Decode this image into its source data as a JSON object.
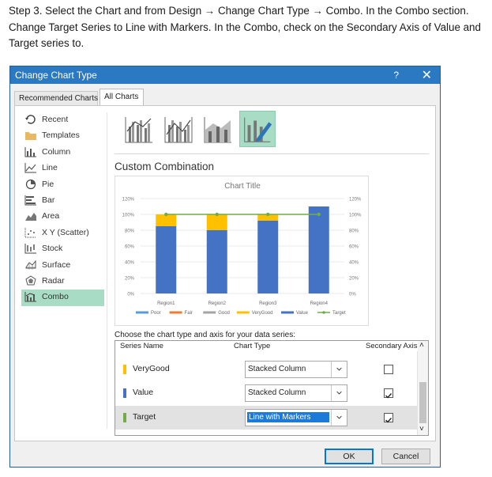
{
  "instruction": "Step 3. Select the Chart and from Design → Change Chart Type → Combo. In the Combo section. Change Target Series to Line with Markers. In the Combo, check on the Secondary Axis of Value and Target series to.",
  "dialog": {
    "title": "Change Chart Type",
    "help": "?",
    "close": "✕",
    "tabs": [
      "Recommended Charts",
      "All Charts"
    ],
    "chart_types": [
      {
        "label": "Recent",
        "icon": "recent-icon"
      },
      {
        "label": "Templates",
        "icon": "templates-folder-icon"
      },
      {
        "label": "Column",
        "icon": "column-chart-icon"
      },
      {
        "label": "Line",
        "icon": "line-chart-icon"
      },
      {
        "label": "Pie",
        "icon": "pie-chart-icon"
      },
      {
        "label": "Bar",
        "icon": "bar-chart-icon"
      },
      {
        "label": "Area",
        "icon": "area-chart-icon"
      },
      {
        "label": "X Y (Scatter)",
        "icon": "scatter-chart-icon"
      },
      {
        "label": "Stock",
        "icon": "stock-chart-icon"
      },
      {
        "label": "Surface",
        "icon": "surface-chart-icon"
      },
      {
        "label": "Radar",
        "icon": "radar-chart-icon"
      },
      {
        "label": "Combo",
        "icon": "combo-chart-icon"
      }
    ],
    "selected_type": "Combo",
    "custom_title": "Custom Combination",
    "choose_label": "Choose the chart type and axis for your data series:",
    "table_headers": {
      "series": "Series Name",
      "type": "Chart Type",
      "axis": "Secondary Axis"
    },
    "series_rows": [
      {
        "name": "VeryGood",
        "type": "Stacked Column",
        "secondary": false,
        "color": "#ffc000"
      },
      {
        "name": "Value",
        "type": "Stacked Column",
        "secondary": true,
        "color": "#4472c4"
      },
      {
        "name": "Target",
        "type": "Line with Markers",
        "secondary": true,
        "color": "#70ad47"
      }
    ],
    "ok": "OK",
    "cancel": "Cancel"
  },
  "chart_data": {
    "type": "bar",
    "title": "Chart Title",
    "categories": [
      "Region1",
      "Region2",
      "Region3",
      "Region4"
    ],
    "ylim": [
      0,
      1.2
    ],
    "y_ticks": [
      "0%",
      "20%",
      "40%",
      "60%",
      "80%",
      "100%",
      "120%"
    ],
    "y2_ticks": [
      "0%",
      "20%",
      "40%",
      "60%",
      "80%",
      "100%",
      "120%"
    ],
    "series": [
      {
        "name": "Poor",
        "color": "#5b9bd5",
        "kind": "stacked",
        "values": [
          0,
          0,
          0,
          0
        ]
      },
      {
        "name": "Fair",
        "color": "#ed7d31",
        "kind": "stacked",
        "values": [
          0,
          0,
          0,
          0
        ]
      },
      {
        "name": "Good",
        "color": "#a5a5a5",
        "kind": "stacked",
        "values": [
          0,
          0,
          0,
          0
        ]
      },
      {
        "name": "VeryGood",
        "color": "#ffc000",
        "kind": "stacked",
        "values": [
          0.15,
          0.2,
          0.08,
          0
        ]
      },
      {
        "name": "Value",
        "color": "#4472c4",
        "kind": "stacked",
        "values": [
          0.85,
          0.8,
          0.92,
          1.1
        ]
      },
      {
        "name": "Target",
        "color": "#70ad47",
        "kind": "line",
        "values": [
          1,
          1,
          1,
          1
        ]
      }
    ],
    "grid": true,
    "legend": "bottom"
  }
}
